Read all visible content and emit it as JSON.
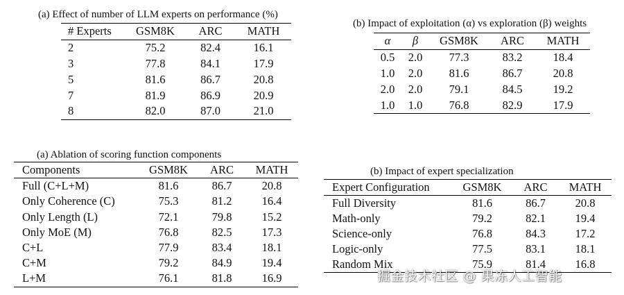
{
  "table_a": {
    "caption": "(a) Effect of number of LLM experts on performance (%)",
    "headers": [
      "# Experts",
      "GSM8K",
      "ARC",
      "MATH"
    ],
    "rows": [
      [
        "2",
        "75.2",
        "82.4",
        "16.1"
      ],
      [
        "3",
        "77.8",
        "84.1",
        "17.9"
      ],
      [
        "5",
        "81.6",
        "86.7",
        "20.8"
      ],
      [
        "7",
        "81.9",
        "86.9",
        "20.9"
      ],
      [
        "8",
        "82.0",
        "87.0",
        "21.0"
      ]
    ]
  },
  "table_b": {
    "caption": "(b) Impact of exploitation (α) vs exploration (β) weights",
    "headers": [
      "α",
      "β",
      "GSM8K",
      "ARC",
      "MATH"
    ],
    "rows": [
      [
        "0.5",
        "2.0",
        "77.3",
        "83.2",
        "18.4"
      ],
      [
        "1.0",
        "2.0",
        "81.6",
        "86.7",
        "20.8"
      ],
      [
        "2.0",
        "2.0",
        "79.1",
        "84.5",
        "19.2"
      ],
      [
        "1.0",
        "1.0",
        "76.8",
        "82.9",
        "17.9"
      ]
    ]
  },
  "table_c": {
    "caption": "(a) Ablation of scoring function components",
    "headers": [
      "Components",
      "GSM8K",
      "ARC",
      "MATH"
    ],
    "rows": [
      [
        "Full (C+L+M)",
        "81.6",
        "86.7",
        "20.8"
      ],
      [
        "Only Coherence (C)",
        "75.3",
        "81.2",
        "16.4"
      ],
      [
        "Only Length (L)",
        "72.1",
        "79.8",
        "15.2"
      ],
      [
        "Only MoE (M)",
        "76.8",
        "82.5",
        "17.3"
      ],
      [
        "C+L",
        "77.9",
        "83.4",
        "18.1"
      ],
      [
        "C+M",
        "79.2",
        "84.9",
        "19.4"
      ],
      [
        "L+M",
        "76.1",
        "81.8",
        "16.9"
      ]
    ]
  },
  "table_d": {
    "caption": "(b) Impact of expert specialization",
    "headers": [
      "Expert Configuration",
      "GSM8K",
      "ARC",
      "MATH"
    ],
    "rows": [
      [
        "Full Diversity",
        "81.6",
        "86.7",
        "20.8"
      ],
      [
        "Math-only",
        "79.2",
        "82.1",
        "19.4"
      ],
      [
        "Science-only",
        "76.8",
        "84.3",
        "17.2"
      ],
      [
        "Logic-only",
        "77.5",
        "83.1",
        "18.1"
      ],
      [
        "Random Mix",
        "75.9",
        "81.4",
        "16.8"
      ]
    ]
  },
  "watermark": "掘金技术社区 @ 果冻人工智能"
}
